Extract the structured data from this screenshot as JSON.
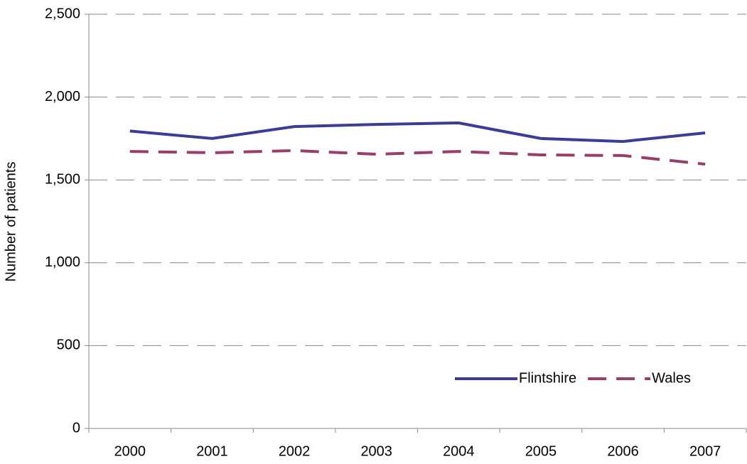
{
  "chart_data": {
    "type": "line",
    "y_label": "Number of patients",
    "categories": [
      "2000",
      "2001",
      "2002",
      "2003",
      "2004",
      "2005",
      "2006",
      "2007"
    ],
    "series": [
      {
        "name": "Flintshire",
        "color": "#3b3b9a",
        "line_style": "solid",
        "values": [
          1795,
          1750,
          1822,
          1835,
          1844,
          1750,
          1732,
          1784
        ]
      },
      {
        "name": "Wales",
        "color": "#993d6b",
        "line_style": "dashed",
        "values": [
          1672,
          1664,
          1677,
          1655,
          1672,
          1651,
          1647,
          1595
        ]
      }
    ],
    "ylim": [
      0,
      2500
    ],
    "yticks": [
      0,
      500,
      {
        "value": 1000,
        "label": "1,000"
      },
      {
        "value": 1500,
        "label": "1,500"
      },
      {
        "value": 2000,
        "label": "2,000"
      },
      {
        "value": 2500,
        "label": "2,500"
      }
    ],
    "grid": true,
    "legend": "lower right"
  }
}
